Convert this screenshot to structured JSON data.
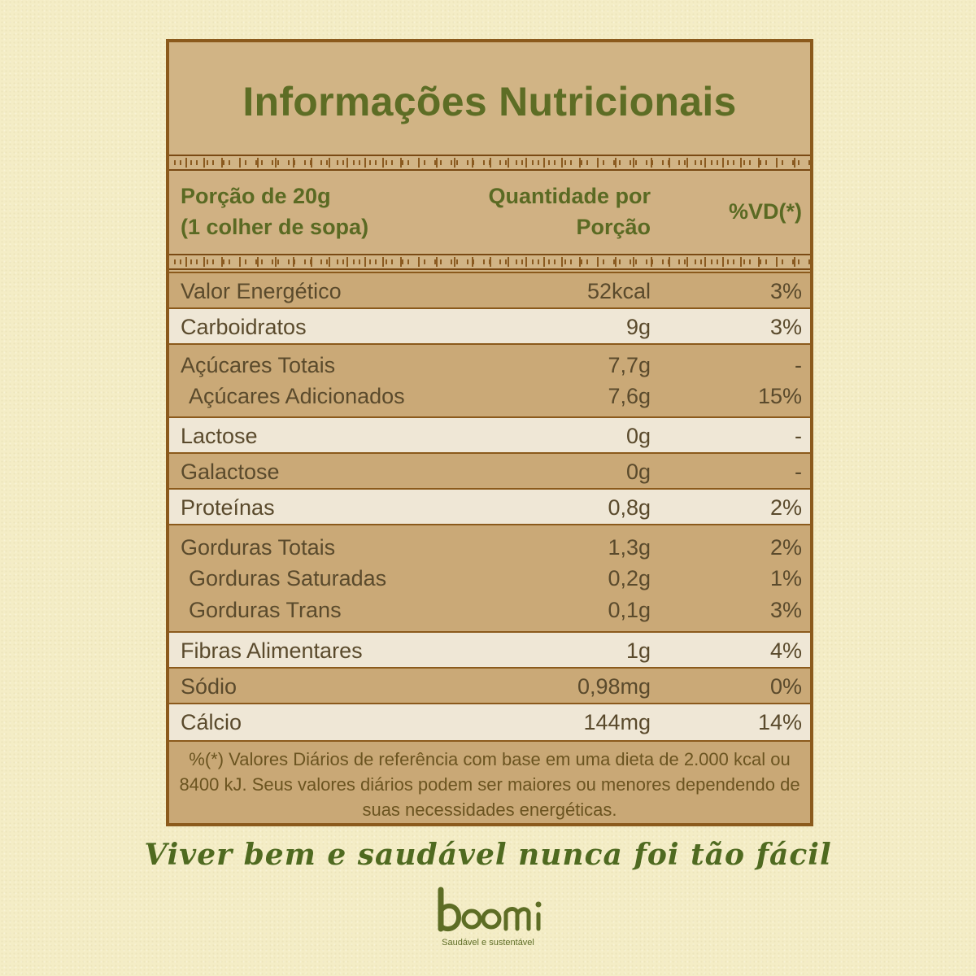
{
  "title": "Informações Nutricionais",
  "header": {
    "portion_line1": "Porção de 20g",
    "portion_line2": "(1 colher de sopa)",
    "qty_line1": "Quantidade por",
    "qty_line2": "Porção",
    "vd": "%VD(*)"
  },
  "rows": [
    {
      "lines": [
        {
          "name": "Valor Energético",
          "qty": "52kcal",
          "vd": "3%"
        }
      ]
    },
    {
      "lines": [
        {
          "name": "Carboidratos",
          "qty": "9g",
          "vd": "3%"
        }
      ]
    },
    {
      "lines": [
        {
          "name": "Açúcares Totais",
          "qty": "7,7g",
          "vd": "-"
        },
        {
          "name": "Açúcares Adicionados",
          "qty": "7,6g",
          "vd": "15%"
        }
      ]
    },
    {
      "lines": [
        {
          "name": "Lactose",
          "qty": "0g",
          "vd": "-"
        }
      ]
    },
    {
      "lines": [
        {
          "name": "Galactose",
          "qty": "0g",
          "vd": "-"
        }
      ]
    },
    {
      "lines": [
        {
          "name": "Proteínas",
          "qty": "0,8g",
          "vd": "2%"
        }
      ]
    },
    {
      "lines": [
        {
          "name": "Gorduras Totais",
          "qty": "1,3g",
          "vd": "2%"
        },
        {
          "name": "Gorduras Saturadas",
          "qty": "0,2g",
          "vd": "1%"
        },
        {
          "name": "Gorduras Trans",
          "qty": "0,1g",
          "vd": "3%"
        }
      ]
    },
    {
      "lines": [
        {
          "name": "Fibras Alimentares",
          "qty": "1g",
          "vd": "4%"
        }
      ]
    },
    {
      "lines": [
        {
          "name": "Sódio",
          "qty": "0,98mg",
          "vd": "0%"
        }
      ]
    },
    {
      "lines": [
        {
          "name": "Cálcio",
          "qty": "144mg",
          "vd": "14%"
        }
      ]
    }
  ],
  "footnote": "%(*) Valores Diários de referência com base em uma dieta de 2.000 kcal ou 8400 kJ. Seus valores diários podem ser maiores ou menores dependendo de suas necessidades energéticas.",
  "slogan": "Viver bem e saudável nunca foi tão fácil",
  "brand": {
    "name": "boomi",
    "tagline": "Saudável e sustentável"
  },
  "colors": {
    "border": "#8b5a1c",
    "title": "#5d6d25",
    "band_dark": "#caa977",
    "band_light": "#efe7d6",
    "background": "#f4edc6"
  }
}
